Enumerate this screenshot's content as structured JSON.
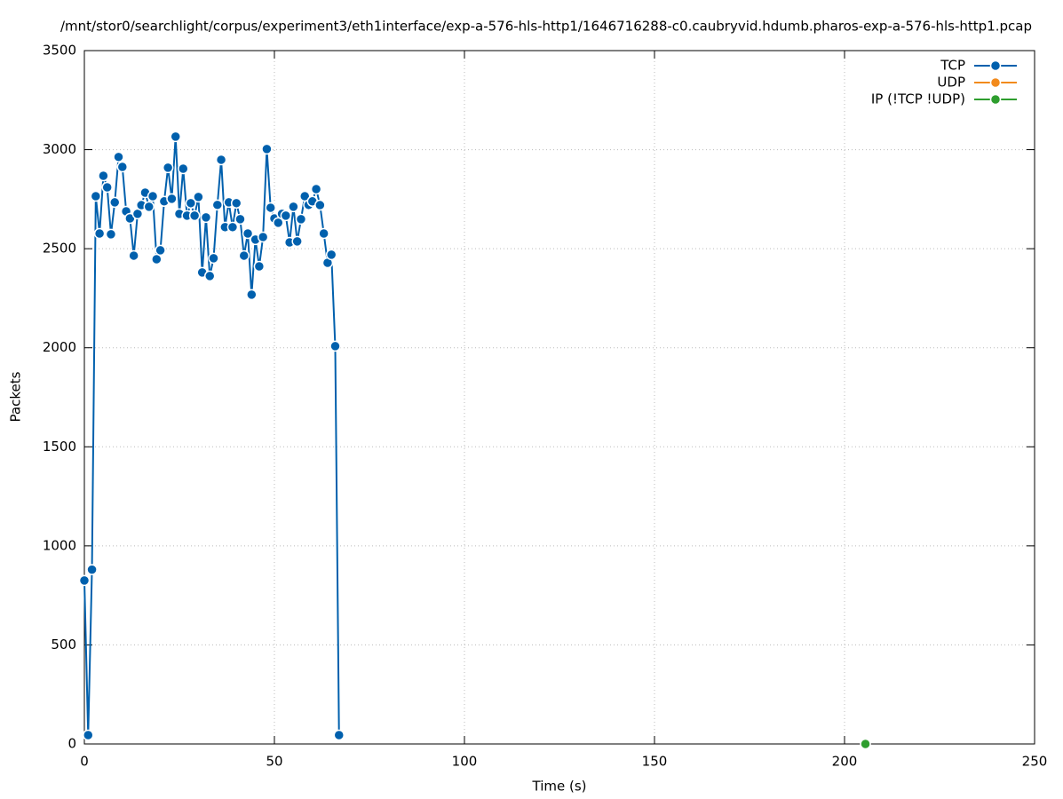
{
  "chart_data": {
    "type": "line",
    "title": "/mnt/stor0/searchlight/corpus/experiment3/eth1interface/exp-a-576-hls-http1/1646716288-c0.caubryvid.hdumb.pharos-exp-a-576-hls-http1.pcap",
    "xlabel": "Time (s)",
    "ylabel": "Packets",
    "xlim": [
      0,
      250
    ],
    "xticks": [
      0,
      50,
      100,
      150,
      200,
      250
    ],
    "ylim": [
      0,
      3500
    ],
    "yticks": [
      0,
      500,
      1000,
      1500,
      2000,
      2500,
      3000,
      3500
    ],
    "grid": true,
    "legend": "top-right",
    "series": [
      {
        "name": "TCP",
        "color": "#0060ad",
        "x": [
          0,
          1,
          2,
          3,
          4,
          5,
          6,
          7,
          8,
          9,
          10,
          11,
          12,
          13,
          14,
          15,
          16,
          17,
          18,
          19,
          20,
          21,
          22,
          23,
          24,
          25,
          26,
          27,
          28,
          29,
          30,
          31,
          32,
          33,
          34,
          35,
          36,
          37,
          38,
          39,
          40,
          41,
          42,
          43,
          44,
          45,
          46,
          47,
          48,
          49,
          50,
          51,
          52,
          53,
          54,
          55,
          56,
          57,
          58,
          59,
          60,
          61,
          62,
          63,
          64,
          65,
          66,
          67
        ],
        "values": [
          825,
          45,
          880,
          2765,
          2577,
          2868,
          2810,
          2573,
          2734,
          2963,
          2913,
          2689,
          2653,
          2465,
          2676,
          2720,
          2783,
          2712,
          2765,
          2447,
          2492,
          2739,
          2909,
          2752,
          3066,
          2676,
          2904,
          2667,
          2730,
          2667,
          2761,
          2380,
          2658,
          2362,
          2452,
          2721,
          2949,
          2609,
          2734,
          2609,
          2730,
          2649,
          2465,
          2577,
          2268,
          2546,
          2411,
          2559,
          3003,
          2707,
          2653,
          2631,
          2676,
          2667,
          2532,
          2712,
          2537,
          2649,
          2765,
          2721,
          2739,
          2801,
          2720,
          2577,
          2429,
          2470,
          2008,
          45
        ]
      },
      {
        "name": "UDP",
        "color": "#f28a1c",
        "x": [],
        "values": []
      },
      {
        "name": "IP (!TCP  !UDP)",
        "color": "#2e9e2e",
        "x": [
          205.5
        ],
        "values": [
          0
        ]
      }
    ]
  }
}
